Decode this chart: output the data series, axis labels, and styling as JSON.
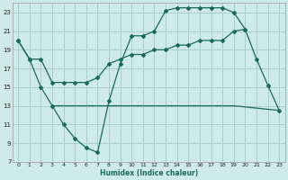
{
  "xlabel": "Humidex (Indice chaleur)",
  "background_color": "#ceeaea",
  "grid_color": "#aacece",
  "line_color": "#1a6b5a",
  "xlim": [
    -0.5,
    23.5
  ],
  "ylim": [
    7,
    24
  ],
  "yticks": [
    7,
    9,
    11,
    13,
    15,
    17,
    19,
    21,
    23
  ],
  "xticks": [
    0,
    1,
    2,
    3,
    4,
    5,
    6,
    7,
    8,
    9,
    10,
    11,
    12,
    13,
    14,
    15,
    16,
    17,
    18,
    19,
    20,
    21,
    22,
    23
  ],
  "line1_x": [
    0,
    1,
    2,
    3,
    4,
    5,
    6,
    7,
    8,
    9,
    10,
    11,
    12,
    13,
    14,
    15,
    16,
    17,
    18,
    19,
    20,
    21,
    22,
    23
  ],
  "line1_y": [
    20,
    18,
    18,
    15.5,
    15.5,
    15.5,
    15.5,
    16,
    17.5,
    18,
    18.5,
    18.5,
    19,
    19,
    19.5,
    19.5,
    20,
    20,
    20,
    21,
    21.2,
    18,
    15.2,
    12.5
  ],
  "line2_x": [
    0,
    1,
    2,
    3,
    4,
    5,
    6,
    7,
    8,
    9,
    10,
    11,
    12,
    13,
    14,
    15,
    16,
    17,
    18,
    19,
    20
  ],
  "line2_y": [
    20,
    18,
    15,
    13,
    11,
    9.5,
    8.5,
    8,
    13.5,
    17.5,
    20.5,
    20.5,
    21,
    23.2,
    23.5,
    23.5,
    23.5,
    23.5,
    23.5,
    23,
    21.2
  ],
  "line3_x": [
    3,
    13,
    19,
    23
  ],
  "line3_y": [
    13,
    13,
    13,
    12.5
  ]
}
